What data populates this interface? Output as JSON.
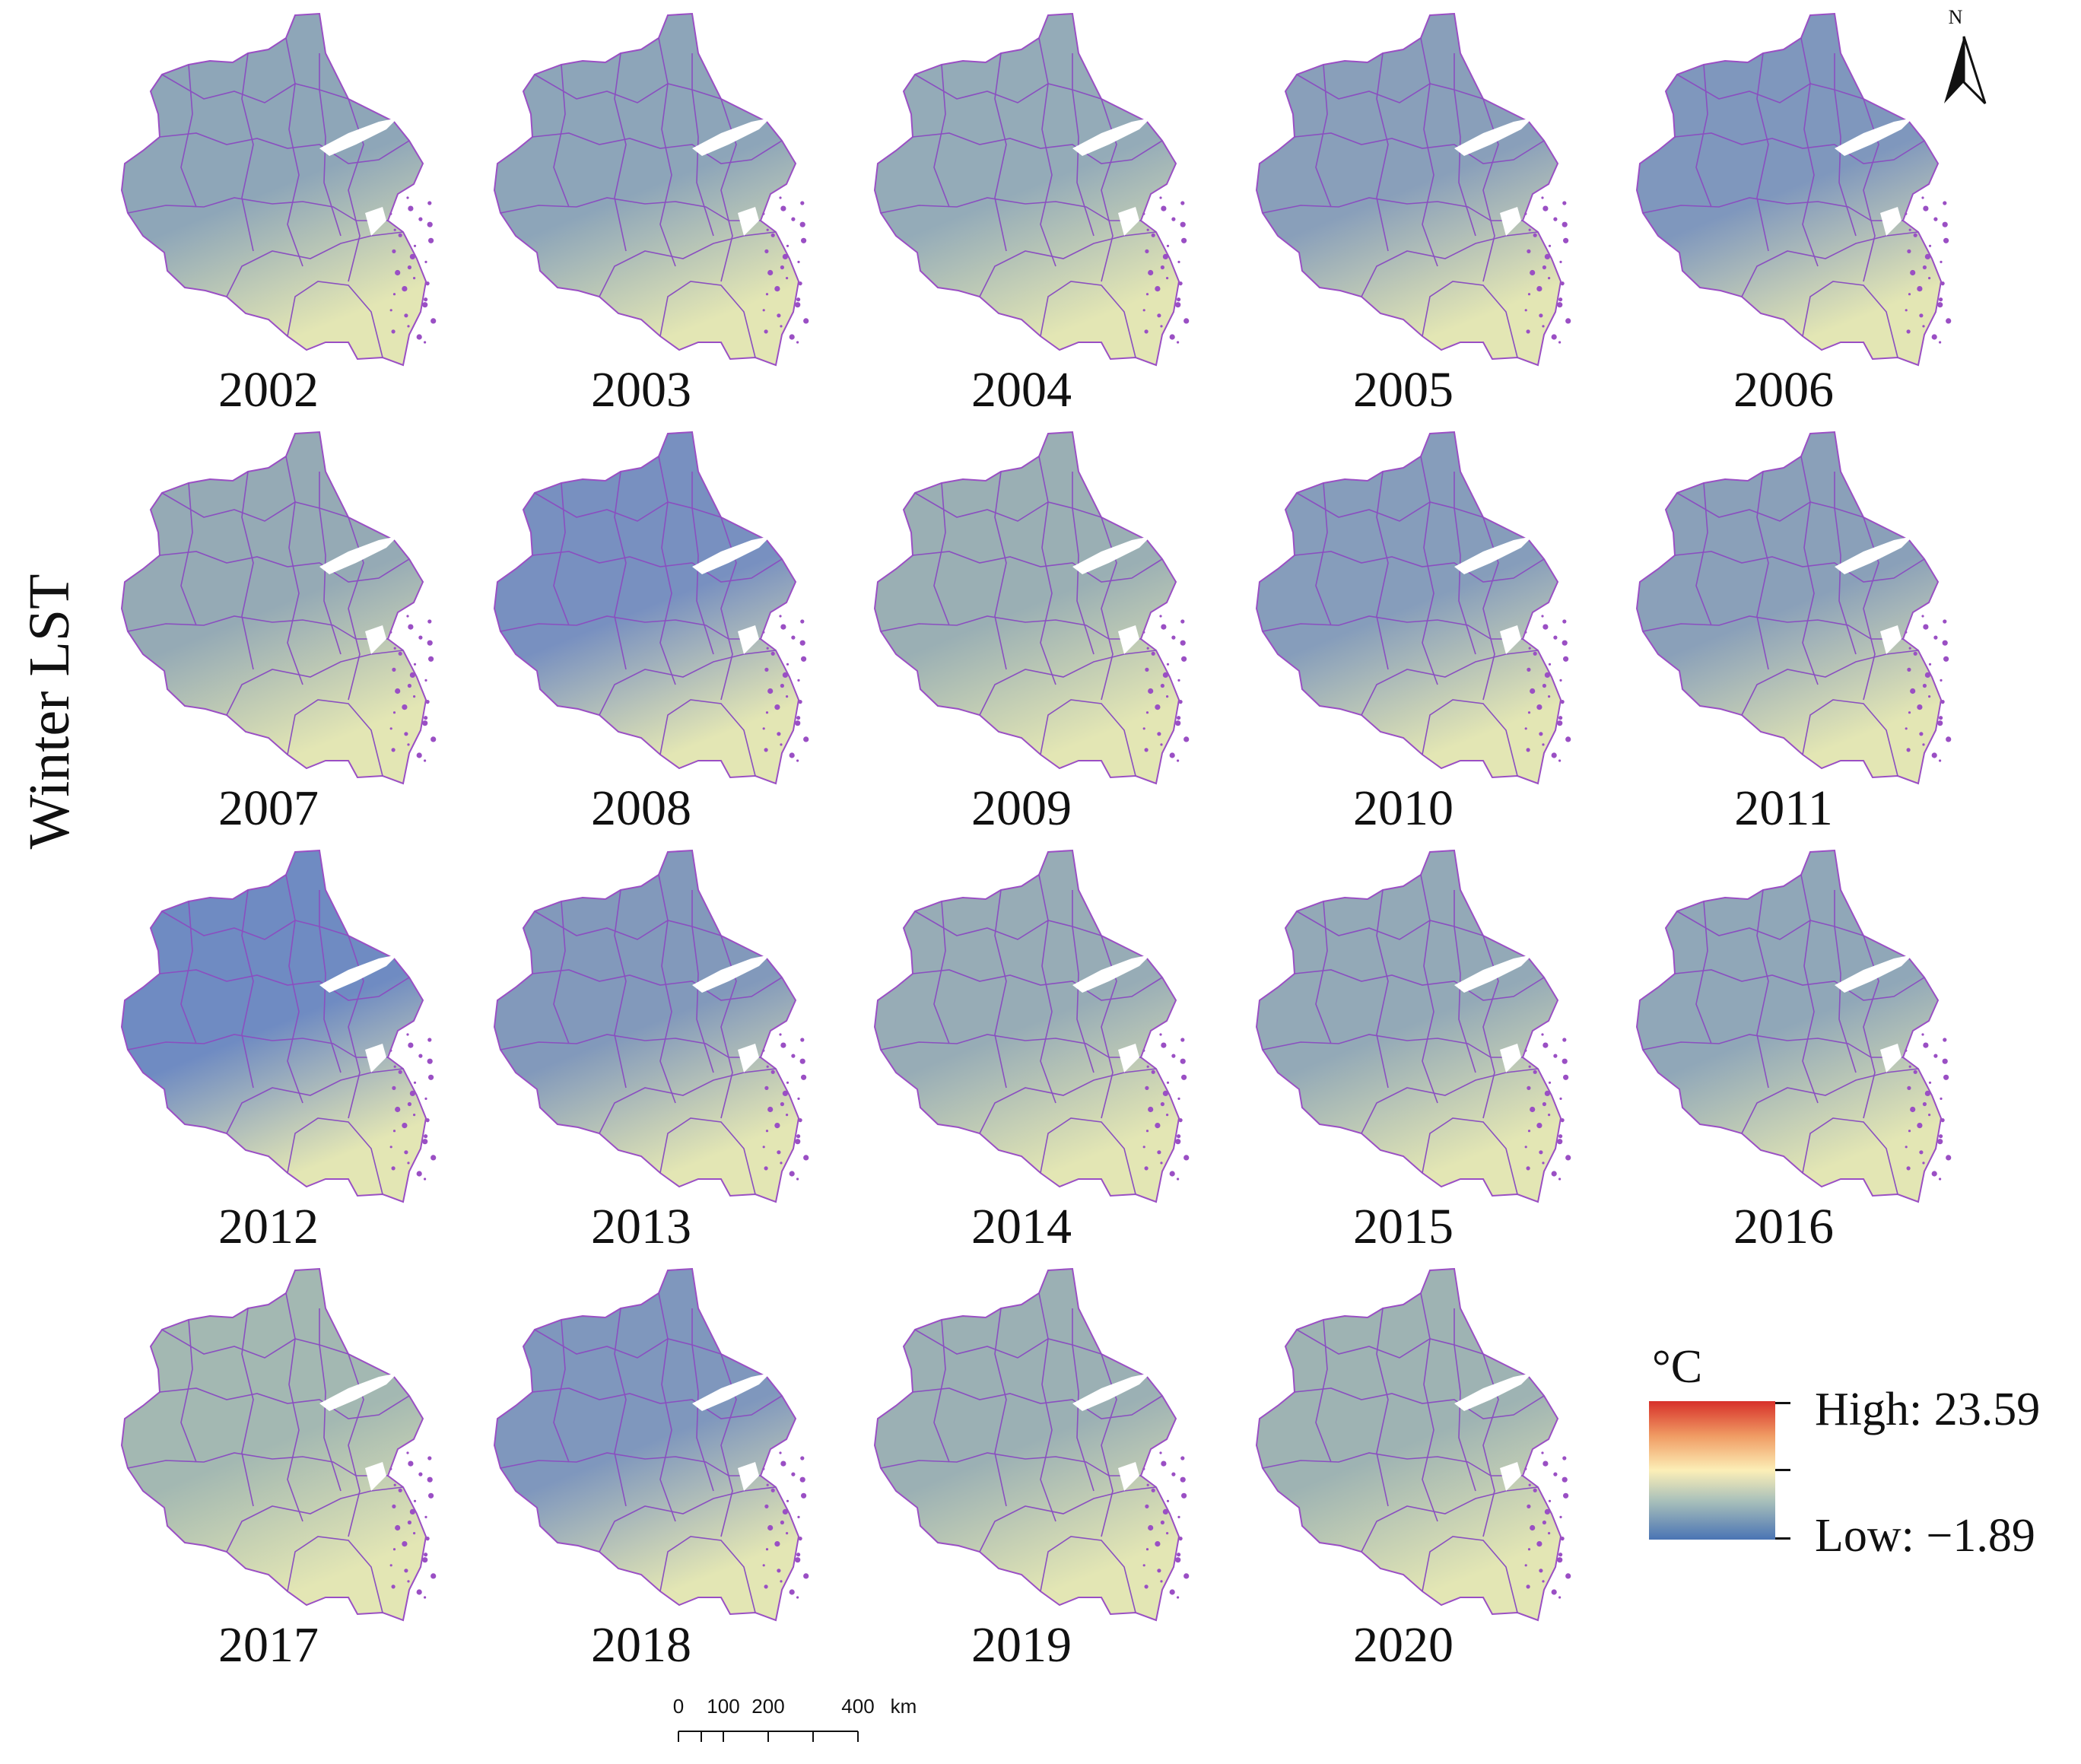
{
  "axis_title": "Winter LST",
  "north_arrow": {
    "letter": "N",
    "icon": "north-arrow-icon"
  },
  "legend": {
    "unit": "°C",
    "high_label": "High: 23.59",
    "low_label": "Low: −1.89",
    "high_value": 23.59,
    "low_value": -1.89,
    "colors": [
      "#d7302a",
      "#f09b63",
      "#fcefb7",
      "#a9c0ba",
      "#4a74b4"
    ]
  },
  "scale_bar": {
    "labels": [
      "0",
      "100",
      "200",
      "400",
      "km"
    ],
    "unit": "km"
  },
  "panels": [
    {
      "year": "2002",
      "tint": "#8ea6b8"
    },
    {
      "year": "2003",
      "tint": "#8da5b9"
    },
    {
      "year": "2004",
      "tint": "#94abb8"
    },
    {
      "year": "2005",
      "tint": "#899fba"
    },
    {
      "year": "2006",
      "tint": "#7f97bd"
    },
    {
      "year": "2007",
      "tint": "#95aab5"
    },
    {
      "year": "2008",
      "tint": "#7890c0"
    },
    {
      "year": "2009",
      "tint": "#9aafb4"
    },
    {
      "year": "2010",
      "tint": "#869dbb"
    },
    {
      "year": "2011",
      "tint": "#8aa0b9"
    },
    {
      "year": "2012",
      "tint": "#6f8bc2"
    },
    {
      "year": "2013",
      "tint": "#8299bb"
    },
    {
      "year": "2014",
      "tint": "#97acb6"
    },
    {
      "year": "2015",
      "tint": "#93a9b7"
    },
    {
      "year": "2016",
      "tint": "#90a7b8"
    },
    {
      "year": "2017",
      "tint": "#a3b8b2"
    },
    {
      "year": "2018",
      "tint": "#7f97bd"
    },
    {
      "year": "2019",
      "tint": "#9bb0b4"
    },
    {
      "year": "2020",
      "tint": "#9eb3b3"
    }
  ]
}
